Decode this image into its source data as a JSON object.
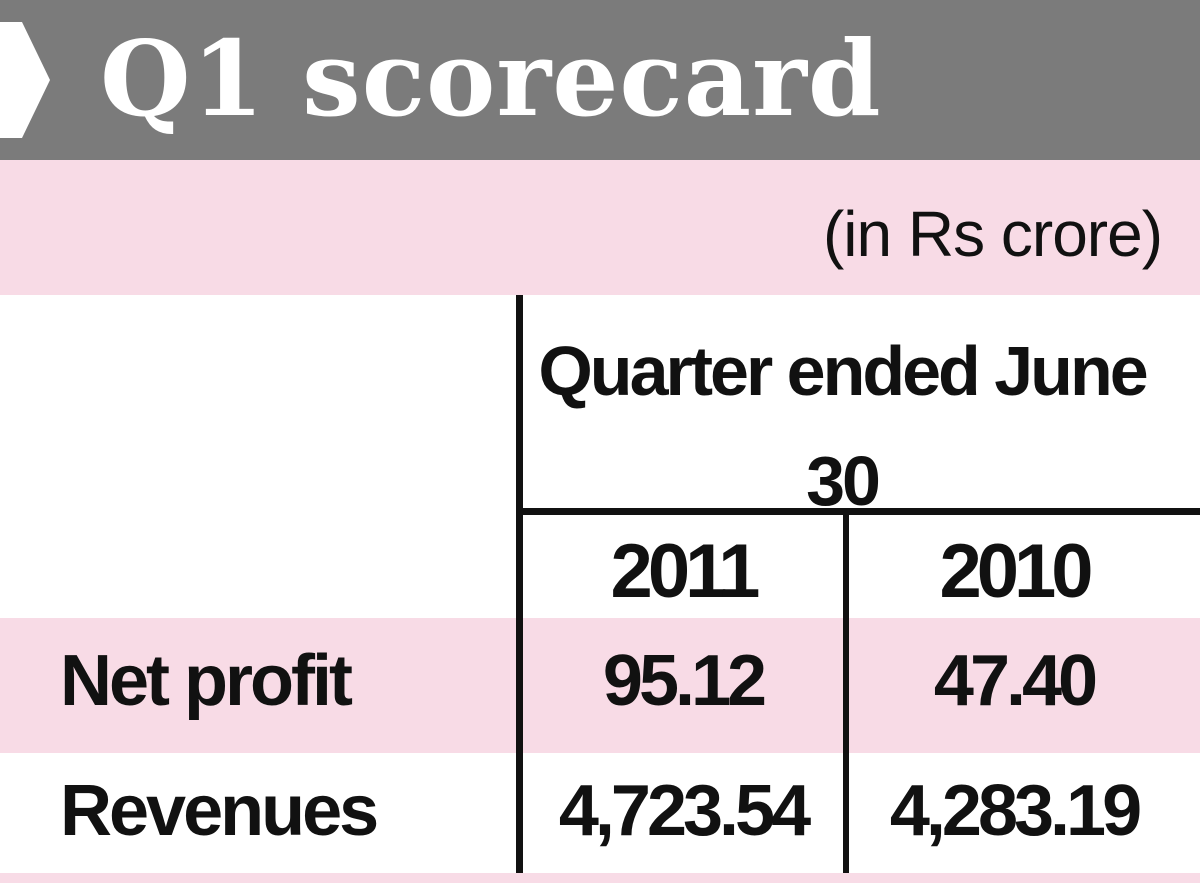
{
  "title": "Q1 scorecard",
  "unit_note": "(in Rs crore)",
  "column_group_header": "Quarter ended June 30",
  "colors": {
    "banner": "#7b7b7b",
    "band": "#f8dbe6",
    "ink": "#111111",
    "title_text": "#ffffff"
  },
  "chart_data": {
    "type": "table",
    "title": "Q1 scorecard",
    "unit": "(in Rs crore)",
    "group_header": "Quarter ended June 30",
    "columns": [
      "2011",
      "2010"
    ],
    "rows": [
      {
        "label": "Net profit",
        "values": [
          "95.12",
          "47.40"
        ]
      },
      {
        "label": "Revenues",
        "values": [
          "4,723.54",
          "4,283.19"
        ]
      }
    ]
  }
}
